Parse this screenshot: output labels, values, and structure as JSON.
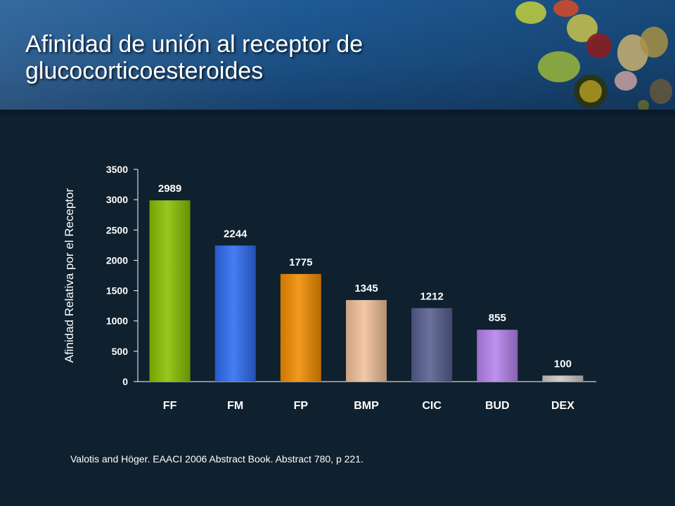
{
  "slide": {
    "title": "Afinidad de unión al receptor de glucocorticoesteroides",
    "citation": "Valotis and Höger. EAACI 2006 Abstract Book. Abstract 780, p 221."
  },
  "colors": {
    "background": "#0f202e",
    "header": "#1e5a94"
  },
  "chart_data": {
    "type": "bar",
    "title": "",
    "xlabel": "",
    "ylabel": "Afinidad Relativa  por el Receptor",
    "categories": [
      "FF",
      "FM",
      "FP",
      "BMP",
      "CIC",
      "BUD",
      "DEX"
    ],
    "values": [
      2989,
      2244,
      1775,
      1345,
      1212,
      855,
      100
    ],
    "data_labels": [
      "2989",
      "2244",
      "1775",
      "1345",
      "1212",
      "855",
      "100"
    ],
    "ylim": [
      0,
      3500
    ],
    "yticks": [
      0,
      500,
      1000,
      1500,
      2000,
      2500,
      3000,
      3500
    ],
    "bar_colors": [
      "#88c000",
      "#2e6bf0",
      "#f08c00",
      "#f0c09a",
      "#565e8e",
      "#b482ec",
      "#c8c8c8"
    ],
    "grid": false,
    "legend": "none"
  }
}
